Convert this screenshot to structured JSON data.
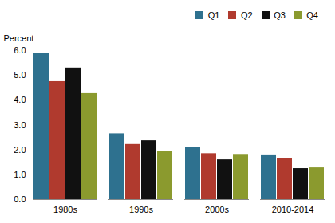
{
  "chart_data": {
    "type": "bar",
    "categories": [
      "1980s",
      "1990s",
      "2000s",
      "2010-2014"
    ],
    "series": [
      {
        "name": "Q1",
        "color": "#2e718f",
        "values": [
          5.9,
          2.65,
          2.1,
          1.8
        ]
      },
      {
        "name": "Q2",
        "color": "#b03a2e",
        "values": [
          4.75,
          2.22,
          1.85,
          1.65
        ]
      },
      {
        "name": "Q3",
        "color": "#111111",
        "values": [
          5.3,
          2.37,
          1.6,
          1.25
        ]
      },
      {
        "name": "Q4",
        "color": "#8b9a2e",
        "values": [
          4.27,
          1.95,
          1.82,
          1.28
        ]
      }
    ],
    "ylabel": "Percent",
    "ylim": [
      0,
      6
    ],
    "yticks": [
      0,
      1,
      2,
      3,
      4,
      5,
      6
    ],
    "grid": false,
    "legend": "upper right"
  }
}
